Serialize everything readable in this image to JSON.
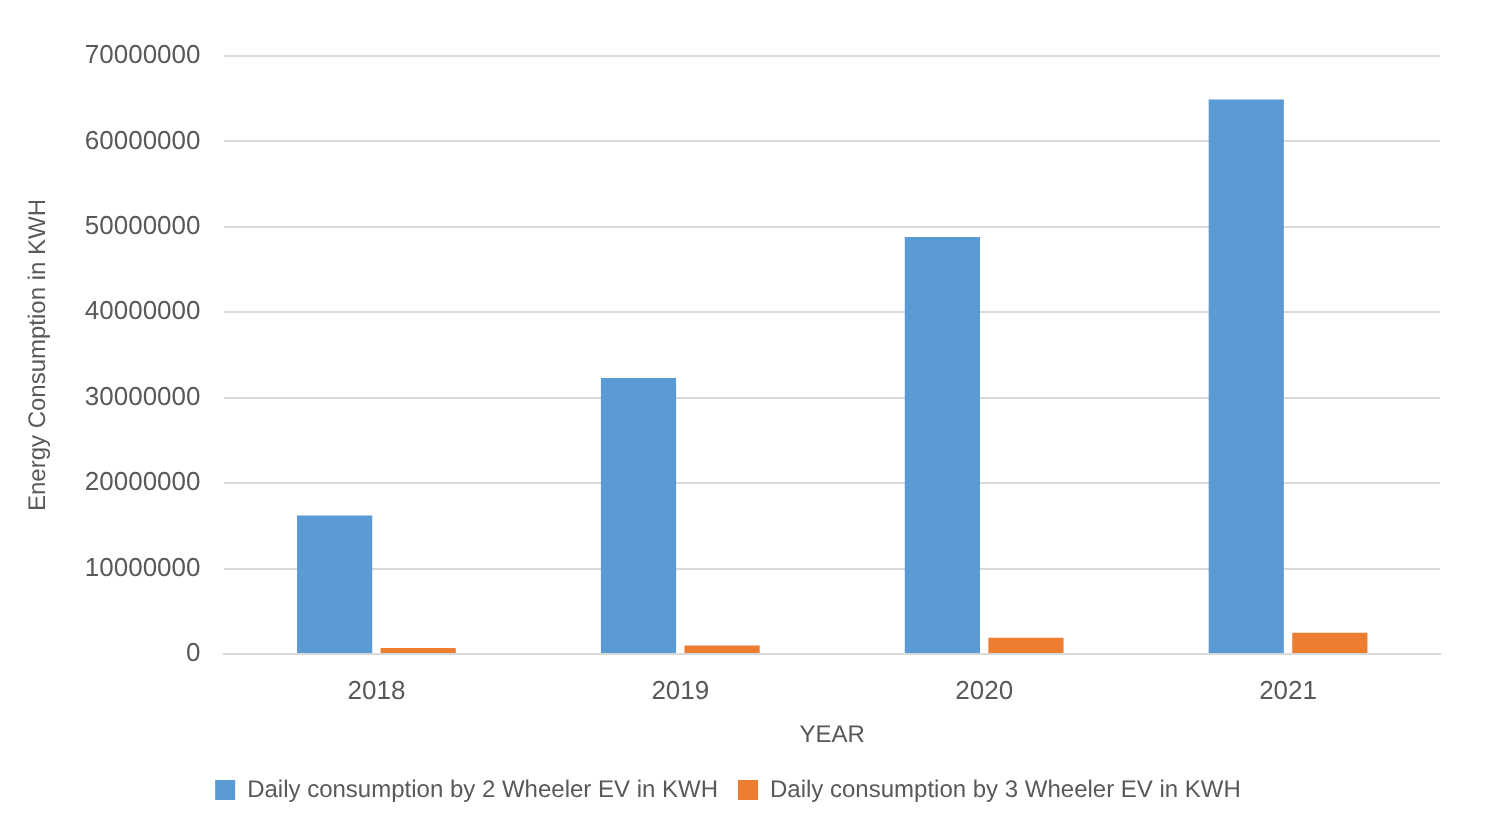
{
  "chart_data": {
    "type": "bar",
    "xlabel": "YEAR",
    "ylabel": "Energy Consumption in KWH",
    "categories": [
      "2018",
      "2019",
      "2020",
      "2021"
    ],
    "series": [
      {
        "name": "Daily consumption by 2 Wheeler EV in KWH",
        "color": "#5b9bd5",
        "values": [
          16200000,
          32300000,
          48800000,
          64900000
        ]
      },
      {
        "name": "Daily consumption by 3 Wheeler EV in KWH",
        "color": "#ed7d31",
        "values": [
          700000,
          1000000,
          1900000,
          2500000
        ]
      }
    ],
    "ylim": [
      0,
      70000000
    ],
    "yticks": [
      0,
      10000000,
      20000000,
      30000000,
      40000000,
      50000000,
      60000000,
      70000000
    ],
    "grid": "y",
    "legend": "bottom"
  }
}
